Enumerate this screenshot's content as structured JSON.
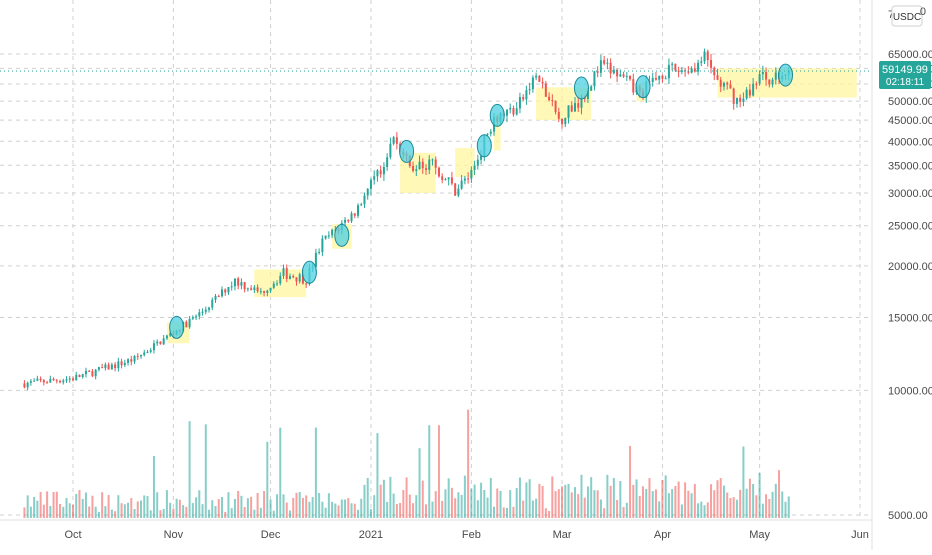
{
  "chart_data": {
    "type": "candlestick",
    "symbol_badge": "USDC",
    "currency_suffix": "0",
    "y_axis": {
      "scale": "log",
      "ylim": [
        4600,
        75000
      ],
      "ticks": [
        "5000.00",
        "10000.00",
        "15000.00",
        "20000.00",
        "25000.00",
        "30000.00",
        "35000.00",
        "40000.00",
        "45000.00",
        "50000.00",
        "55000.00",
        "60000.00",
        "65000.00"
      ],
      "top_partial_label": "7"
    },
    "x_axis": {
      "ticks": [
        "Oct",
        "Nov",
        "Dec",
        "2021",
        "Feb",
        "Mar",
        "Apr",
        "May",
        "Jun"
      ]
    },
    "last_price": {
      "value": "59149.99",
      "countdown": "02:18:11",
      "color": "#26a69a"
    },
    "grid": true,
    "colors": {
      "up": "#26a69a",
      "down": "#ef5350",
      "highlight": "#fff59d",
      "circle": "#4dd0e1"
    },
    "anchors": [
      [
        "2020-09-16",
        10400
      ],
      [
        "2020-10-01",
        10700
      ],
      [
        "2020-10-20",
        11900
      ],
      [
        "2020-11-01",
        13800
      ],
      [
        "2020-11-10",
        15500
      ],
      [
        "2020-11-20",
        18500
      ],
      [
        "2020-11-28",
        17200
      ],
      [
        "2020-12-05",
        19200
      ],
      [
        "2020-12-12",
        18600
      ],
      [
        "2020-12-17",
        22800
      ],
      [
        "2020-12-27",
        27000
      ],
      [
        "2021-01-02",
        32000
      ],
      [
        "2021-01-08",
        40500
      ],
      [
        "2021-01-13",
        34500
      ],
      [
        "2021-01-20",
        35500
      ],
      [
        "2021-01-27",
        30500
      ],
      [
        "2021-02-01",
        33500
      ],
      [
        "2021-02-08",
        46000
      ],
      [
        "2021-02-15",
        48000
      ],
      [
        "2021-02-21",
        57500
      ],
      [
        "2021-02-28",
        45000
      ],
      [
        "2021-03-07",
        51000
      ],
      [
        "2021-03-13",
        61000
      ],
      [
        "2021-03-18",
        58000
      ],
      [
        "2021-03-25",
        52000
      ],
      [
        "2021-04-01",
        58800
      ],
      [
        "2021-04-10",
        60000
      ],
      [
        "2021-04-14",
        63500
      ],
      [
        "2021-04-18",
        56000
      ],
      [
        "2021-04-25",
        49500
      ],
      [
        "2021-05-01",
        57500
      ],
      [
        "2021-05-06",
        56500
      ],
      [
        "2021-05-10",
        59149.99
      ]
    ],
    "highlight_zones": [
      {
        "from": "2020-10-30",
        "to": "2020-11-06",
        "low": 13000,
        "high": 14600
      },
      {
        "from": "2020-11-26",
        "to": "2020-12-12",
        "low": 16800,
        "high": 19600
      },
      {
        "from": "2020-12-20",
        "to": "2020-12-26",
        "low": 22000,
        "high": 25200
      },
      {
        "from": "2021-01-10",
        "to": "2021-01-21",
        "low": 30000,
        "high": 37500
      },
      {
        "from": "2021-01-27",
        "to": "2021-02-02",
        "low": 32800,
        "high": 38500
      },
      {
        "from": "2021-02-08",
        "to": "2021-02-10",
        "low": 38000,
        "high": 46500
      },
      {
        "from": "2021-02-21",
        "to": "2021-03-10",
        "low": 45000,
        "high": 54000
      },
      {
        "from": "2021-03-24",
        "to": "2021-03-27",
        "low": 50000,
        "high": 55000
      },
      {
        "from": "2021-04-18",
        "to": "2021-05-31",
        "low": 51000,
        "high": 60000
      }
    ],
    "circle_markers": [
      {
        "date": "2020-11-02",
        "price": 14200
      },
      {
        "date": "2020-12-13",
        "price": 19300
      },
      {
        "date": "2020-12-23",
        "price": 23700
      },
      {
        "date": "2021-01-12",
        "price": 37800
      },
      {
        "date": "2021-02-05",
        "price": 39000
      },
      {
        "date": "2021-02-09",
        "price": 46200
      },
      {
        "date": "2021-03-07",
        "price": 53800
      },
      {
        "date": "2021-03-26",
        "price": 54200
      },
      {
        "date": "2021-05-09",
        "price": 57800
      }
    ]
  }
}
